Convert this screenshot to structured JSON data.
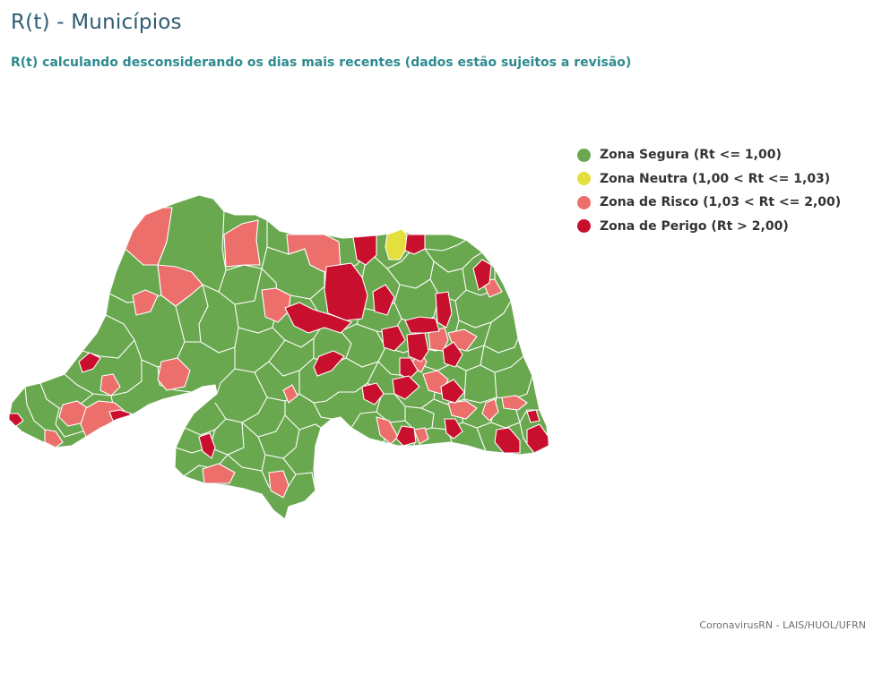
{
  "header": {
    "title": "R(t) - Municípios",
    "subtitle": "R(t) calculando desconsiderando os dias mais recentes (dados estão sujeitos a revisão)"
  },
  "legend": [
    {
      "label": "Zona Segura (Rt <= 1,00)",
      "color": "#6aa84f"
    },
    {
      "label": "Zona Neutra (1,00 < Rt <= 1,03)",
      "color": "#e3df3c"
    },
    {
      "label": "Zona de Risco (1,03 < Rt <= 2,00)",
      "color": "#ec6f6c"
    },
    {
      "label": "Zona de Perigo (Rt > 2,00)",
      "color": "#c8102e"
    }
  ],
  "map": {
    "colors": {
      "base": "#6aa84f",
      "border": "#ffffff"
    }
  },
  "footer": {
    "credit": "CoronavirusRN - LAIS/HUOL/UFRN"
  }
}
